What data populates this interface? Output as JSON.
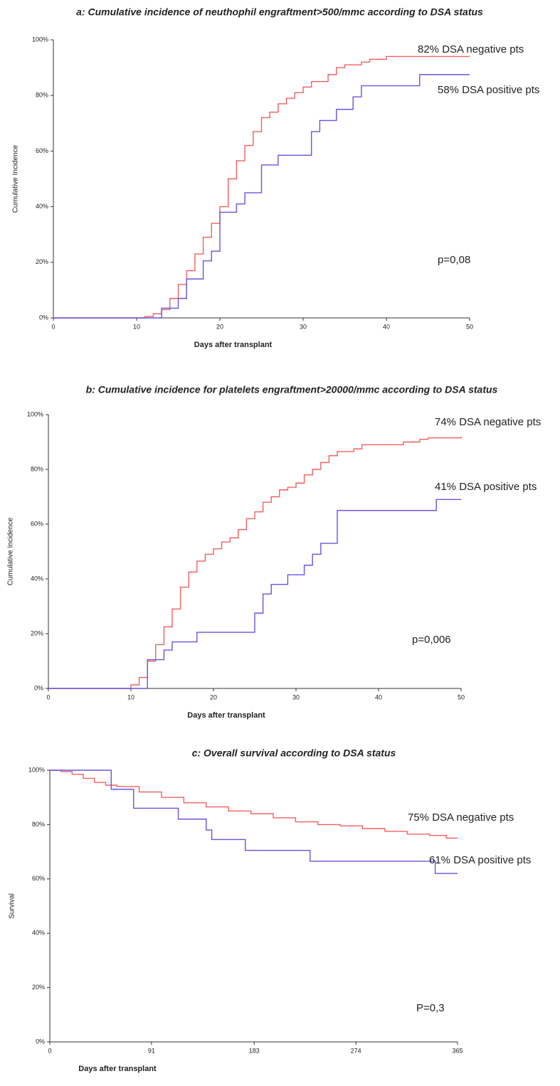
{
  "chart_data": [
    {
      "type": "line",
      "step": true,
      "title": "a: Cumulative incidence  of neuthophil engraftment>500/mmc according to DSA status",
      "x_label": "Days after transplant",
      "y_label": "Cumulative Incidence",
      "xlim": [
        0,
        50
      ],
      "xticks": [
        0,
        10,
        20,
        30,
        40,
        50
      ],
      "ylim": [
        0,
        100
      ],
      "yticks": [
        {
          "value": 0,
          "label": "0%"
        },
        {
          "value": 20,
          "label": "20%"
        },
        {
          "value": 40,
          "label": "40%"
        },
        {
          "value": 60,
          "label": "60%"
        },
        {
          "value": 80,
          "label": "80%"
        },
        {
          "value": 100,
          "label": "100%"
        }
      ],
      "annotations": [
        "82% DSA negative pts",
        "58% DSA positive pts",
        "p=0,08"
      ],
      "series": [
        {
          "color": "#f06060",
          "x": [
            0,
            11,
            12,
            13,
            14,
            15,
            16,
            17,
            18,
            19,
            20,
            21,
            22,
            23,
            24,
            25,
            26,
            27,
            28,
            29,
            30,
            31,
            33,
            34,
            35,
            37,
            38,
            40,
            50
          ],
          "values": [
            0,
            0.5,
            1.5,
            3,
            7,
            12,
            17,
            23,
            29,
            34,
            40,
            50,
            56.5,
            62,
            67,
            72,
            74,
            77,
            79,
            81,
            83,
            85,
            87.5,
            90,
            91,
            92,
            93,
            94,
            94
          ]
        },
        {
          "color": "#6655dd",
          "x": [
            0,
            13,
            15,
            16,
            18,
            19,
            20,
            22,
            23,
            25,
            27,
            31,
            32,
            34,
            36,
            37,
            44,
            50
          ],
          "values": [
            0,
            3.5,
            7,
            14,
            20.5,
            24,
            38,
            41,
            45,
            55,
            58.5,
            67,
            71,
            75,
            79.5,
            83.5,
            87.5,
            87.5
          ]
        }
      ]
    },
    {
      "type": "line",
      "step": true,
      "title": "b: Cumulative incidence  for platelets engraftment>20000/mmc according to DSA status",
      "x_label": "Days after transplant",
      "y_label": "Cumulative Incidence",
      "xlim": [
        0,
        50
      ],
      "xticks": [
        0,
        10,
        20,
        30,
        40,
        50
      ],
      "ylim": [
        0,
        100
      ],
      "yticks": [
        {
          "value": 0,
          "label": "0%"
        },
        {
          "value": 20,
          "label": "20%"
        },
        {
          "value": 40,
          "label": "40%"
        },
        {
          "value": 60,
          "label": "60%"
        },
        {
          "value": 80,
          "label": "80%"
        },
        {
          "value": 100,
          "label": "100%"
        }
      ],
      "annotations": [
        "74% DSA negative pts",
        "41% DSA positive pts",
        "p=0,006"
      ],
      "series": [
        {
          "color": "#f06060",
          "x": [
            0,
            10,
            11,
            12,
            13,
            14,
            15,
            16,
            17,
            18,
            19,
            20,
            21,
            22,
            23,
            24,
            25,
            26,
            27,
            28,
            29,
            30,
            31,
            32,
            33,
            34,
            35,
            37,
            38,
            43,
            45,
            46,
            50
          ],
          "values": [
            0,
            1.3,
            4,
            10,
            16,
            22.5,
            29,
            37,
            42.5,
            46.5,
            49,
            51,
            53.5,
            55,
            58,
            62,
            64.5,
            68,
            70,
            72.5,
            73.5,
            75,
            78,
            80,
            82.5,
            85,
            86.5,
            87.5,
            89,
            90,
            91,
            91.5,
            92
          ]
        },
        {
          "color": "#6655dd",
          "x": [
            0,
            12,
            14,
            15,
            18,
            25,
            26,
            27,
            29,
            31,
            32,
            33,
            35,
            47,
            50
          ],
          "values": [
            0,
            10.5,
            14,
            17,
            20.5,
            27.5,
            34.5,
            38,
            41.5,
            45,
            49,
            53,
            65,
            69,
            69
          ]
        }
      ]
    },
    {
      "type": "line",
      "step": true,
      "title": "c: Overall survival  according to DSA status",
      "x_label": "Days after transplant",
      "y_label": "Survival",
      "xlim": [
        0,
        365
      ],
      "xticks": [
        0,
        91,
        183,
        274,
        365
      ],
      "ylim": [
        0,
        100
      ],
      "yticks": [
        {
          "value": 0,
          "label": "0%"
        },
        {
          "value": 20,
          "label": "20%"
        },
        {
          "value": 40,
          "label": "40%"
        },
        {
          "value": 60,
          "label": "60%"
        },
        {
          "value": 80,
          "label": "80%"
        },
        {
          "value": 100,
          "label": "100%"
        }
      ],
      "annotations": [
        "75% DSA negative pts",
        "61% DSA positive pts",
        "P=0,3"
      ],
      "series": [
        {
          "color": "#f06060",
          "x": [
            0,
            10,
            20,
            30,
            40,
            50,
            60,
            80,
            100,
            120,
            140,
            160,
            180,
            200,
            220,
            240,
            260,
            280,
            300,
            320,
            340,
            355,
            365
          ],
          "values": [
            100,
            99.5,
            98.5,
            97,
            95.5,
            94.5,
            94,
            92,
            90,
            88,
            86.5,
            85,
            84,
            82.5,
            81,
            80,
            79.5,
            78.5,
            77.5,
            76.5,
            76,
            75,
            75
          ]
        },
        {
          "color": "#6655dd",
          "x": [
            0,
            55,
            75,
            115,
            140,
            145,
            175,
            233,
            345,
            365
          ],
          "values": [
            100,
            93,
            86,
            82,
            78,
            74.5,
            70.5,
            66.5,
            62,
            62
          ]
        }
      ]
    }
  ]
}
